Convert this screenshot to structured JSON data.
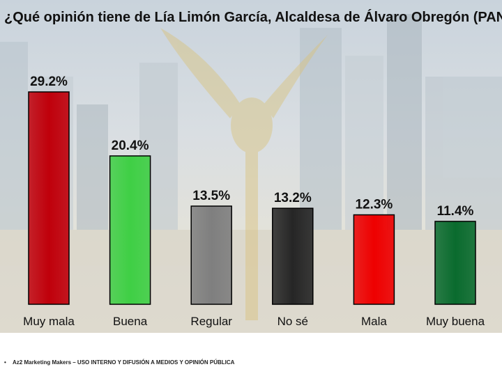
{
  "title": "¿Qué opinión tiene de Lía Limón García, Alcaldesa de Álvaro Obregón (PAN)?",
  "footer": {
    "bullet": "•",
    "text": "Az2 Marketing Makers – USO INTERNO Y DIFUSIÓN A MEDIOS Y OPINIÓN PÚBLICA"
  },
  "chart_data": {
    "type": "bar",
    "title": "¿Qué opinión tiene de Lía Limón García, Alcaldesa de Álvaro Obregón (PAN)?",
    "categories": [
      "Muy mala",
      "Buena",
      "Regular",
      "No sé",
      "Mala",
      "Muy buena"
    ],
    "values": [
      29.2,
      20.4,
      13.5,
      13.2,
      12.3,
      11.4
    ],
    "value_labels": [
      "29.2%",
      "20.4%",
      "13.5%",
      "13.2%",
      "12.3%",
      "11.4%"
    ],
    "colors": [
      "#c0000b",
      "#3fcf45",
      "#7f7f7f",
      "#262626",
      "#ee0000",
      "#0a6b2e"
    ],
    "unit": "%",
    "ylim": [
      0,
      30
    ],
    "grid": false,
    "legend": "none"
  }
}
